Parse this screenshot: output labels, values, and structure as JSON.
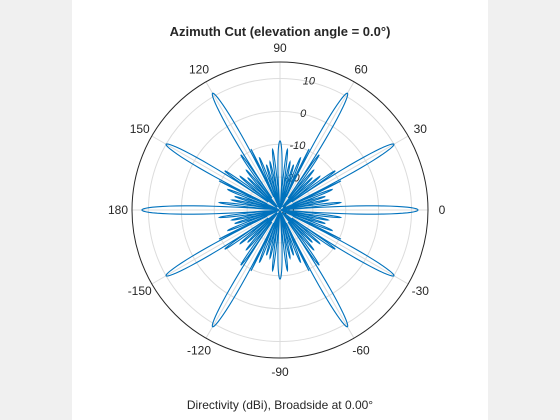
{
  "chart_data": {
    "type": "polar-line",
    "title": "Azimuth Cut (elevation angle = 0.0°)",
    "xlabel": "Directivity (dBi), Broadside at 0.00°",
    "angle_ticks": [
      0,
      30,
      60,
      90,
      120,
      150,
      180,
      -150,
      -120,
      -90,
      -60,
      -30
    ],
    "radial_ticks": [
      -30,
      -20,
      -10,
      0,
      10
    ],
    "radial_lim": [
      -30,
      15
    ],
    "grid": true,
    "series_color": "#0072bd",
    "series": [
      {
        "lobe_peaks": [
          {
            "angle": 0,
            "value": 12
          },
          {
            "angle": 30,
            "value": 10
          },
          {
            "angle": 60,
            "value": 11
          },
          {
            "angle": 90,
            "value": -9
          },
          {
            "angle": 120,
            "value": 11
          },
          {
            "angle": 150,
            "value": 10
          },
          {
            "angle": 180,
            "value": 12
          },
          {
            "angle": -150,
            "value": 10
          },
          {
            "angle": -120,
            "value": 11
          },
          {
            "angle": -90,
            "value": -9
          },
          {
            "angle": -60,
            "value": 11
          },
          {
            "angle": -30,
            "value": 10
          }
        ],
        "sidelobe_level": -10
      }
    ]
  }
}
